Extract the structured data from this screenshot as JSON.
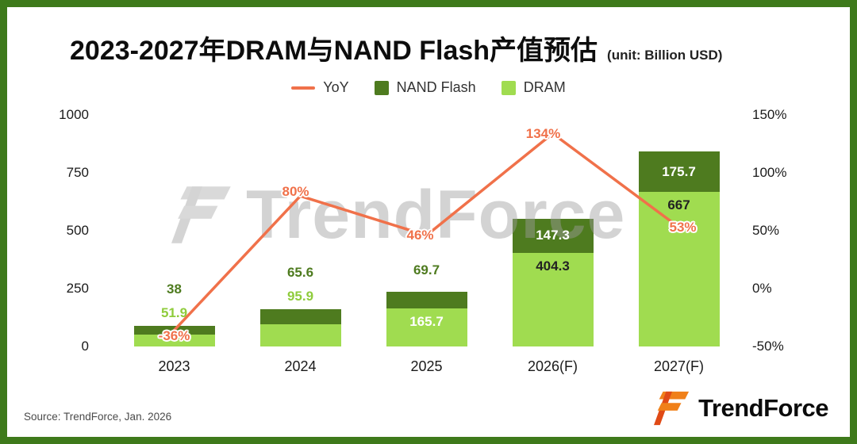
{
  "title": {
    "text": "2023-2027年DRAM与NAND Flash产值预估",
    "unit": "(unit: Billion USD)"
  },
  "legend": [
    {
      "label": "YoY",
      "marker": "line",
      "color": "#F0714A"
    },
    {
      "label": "NAND Flash",
      "marker": "square",
      "color": "#4E7B1F"
    },
    {
      "label": "DRAM",
      "marker": "square",
      "color": "#A0DC50"
    }
  ],
  "chart_data": {
    "type": "bar",
    "subtype": "stacked-column-with-yoy-line",
    "title": "2023-2027年DRAM与NAND Flash产值预估",
    "unit": "Billion USD",
    "categories": [
      "2023",
      "2024",
      "2025",
      "2026(F)",
      "2027(F)"
    ],
    "series": [
      {
        "name": "DRAM",
        "chart": "bar",
        "stack": "total",
        "color": "#A0DC50",
        "values": [
          51.9,
          95.9,
          165.7,
          404.3,
          667
        ]
      },
      {
        "name": "NAND Flash",
        "chart": "bar",
        "stack": "total",
        "color": "#4E7B1F",
        "values": [
          38,
          65.6,
          69.7,
          147.3,
          175.7
        ]
      },
      {
        "name": "YoY",
        "chart": "line",
        "axis": "right",
        "color": "#F0714A",
        "values": [
          -36,
          80,
          46,
          134,
          53
        ]
      }
    ],
    "value_labels": {
      "DRAM": [
        "51.9",
        "95.9",
        "165.7",
        "404.3",
        "667"
      ],
      "NAND": [
        "38",
        "65.6",
        "69.7",
        "147.3",
        "175.7"
      ],
      "YoY": [
        "-36%",
        "80%",
        "46%",
        "134%",
        "53%"
      ]
    },
    "left_axis": {
      "min": 0,
      "max": 1000,
      "ticks": [
        0,
        250,
        500,
        750,
        1000
      ]
    },
    "right_axis": {
      "min": -50,
      "max": 150,
      "ticks": [
        -50,
        0,
        50,
        100,
        150
      ],
      "unit": "%"
    },
    "grid": false,
    "legend_position": "top"
  },
  "watermark": {
    "text": "TrendForce"
  },
  "source": {
    "text": "Source: TrendForce, Jan. 2026"
  },
  "logo": {
    "text": "TrendForce"
  },
  "colors": {
    "frame": "#3E7A1B",
    "background": "#FFFFFF",
    "title": "#0D0D0D",
    "axis_text": "#1A1A1A"
  }
}
